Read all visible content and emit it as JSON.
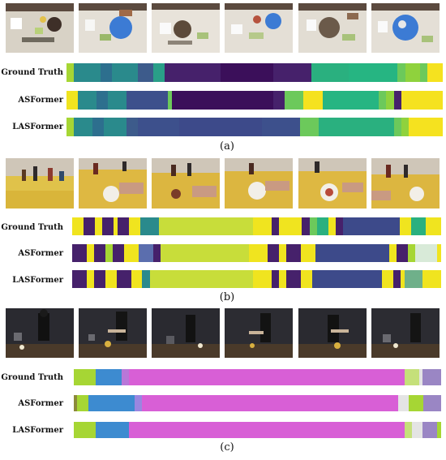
{
  "panels": [
    {
      "label": "(a)",
      "rows": [
        {
          "name": "Ground Truth",
          "segments": [
            {
              "w": 2,
              "c": "#a6d634"
            },
            {
              "w": 7,
              "c": "#2a8a8c"
            },
            {
              "w": 3,
              "c": "#2d6f8e"
            },
            {
              "w": 7,
              "c": "#2a8a8c"
            },
            {
              "w": 4,
              "c": "#3d5b8b"
            },
            {
              "w": 3,
              "c": "#2a9f88"
            },
            {
              "w": 15,
              "c": "#46216b"
            },
            {
              "w": 14,
              "c": "#3b0f5a"
            },
            {
              "w": 10,
              "c": "#46216b"
            },
            {
              "w": 10,
              "c": "#2ab07f"
            },
            {
              "w": 13,
              "c": "#26b582"
            },
            {
              "w": 2,
              "c": "#6cc95b"
            },
            {
              "w": 4,
              "c": "#8fd23d"
            },
            {
              "w": 2,
              "c": "#6cc95b"
            },
            {
              "w": 4,
              "c": "#f5e21f"
            }
          ]
        },
        {
          "name": "ASFormer",
          "segments": [
            {
              "w": 3,
              "c": "#f0e41f"
            },
            {
              "w": 5,
              "c": "#2a8a8c"
            },
            {
              "w": 3,
              "c": "#2d6f8e"
            },
            {
              "w": 5,
              "c": "#2a8a8c"
            },
            {
              "w": 11,
              "c": "#3d508c"
            },
            {
              "w": 1,
              "c": "#6cc95b"
            },
            {
              "w": 27,
              "c": "#3b0f5a"
            },
            {
              "w": 3,
              "c": "#46216b"
            },
            {
              "w": 5,
              "c": "#6cc95b"
            },
            {
              "w": 5,
              "c": "#f5e21f"
            },
            {
              "w": 15,
              "c": "#26b582"
            },
            {
              "w": 2,
              "c": "#6cc95b"
            },
            {
              "w": 2,
              "c": "#8fd23d"
            },
            {
              "w": 2,
              "c": "#46216b"
            },
            {
              "w": 11,
              "c": "#f5e21f"
            }
          ]
        },
        {
          "name": "LASFormer",
          "segments": [
            {
              "w": 2,
              "c": "#a6d634"
            },
            {
              "w": 5,
              "c": "#2a8a8c"
            },
            {
              "w": 3,
              "c": "#2d6f8e"
            },
            {
              "w": 6,
              "c": "#2a8a8c"
            },
            {
              "w": 3,
              "c": "#3d5b8b"
            },
            {
              "w": 11,
              "c": "#3d508c"
            },
            {
              "w": 22,
              "c": "#3d4a8a"
            },
            {
              "w": 10,
              "c": "#3d508c"
            },
            {
              "w": 5,
              "c": "#6cc95b"
            },
            {
              "w": 20,
              "c": "#2ab07f"
            },
            {
              "w": 2,
              "c": "#6cc95b"
            },
            {
              "w": 2,
              "c": "#8fd23d"
            },
            {
              "w": 9,
              "c": "#f5e21f"
            }
          ]
        }
      ]
    },
    {
      "label": "(b)",
      "rows": [
        {
          "name": "Ground Truth",
          "segments": [
            {
              "w": 3,
              "c": "#f0e41f"
            },
            {
              "w": 3,
              "c": "#46216b"
            },
            {
              "w": 2,
              "c": "#f0e41f"
            },
            {
              "w": 3,
              "c": "#46216b"
            },
            {
              "w": 1,
              "c": "#f0e41f"
            },
            {
              "w": 3,
              "c": "#46216b"
            },
            {
              "w": 3,
              "c": "#f0e41f"
            },
            {
              "w": 5,
              "c": "#2a8a8c"
            },
            {
              "w": 1,
              "c": "#c8dd3a"
            },
            {
              "w": 24,
              "c": "#c8dd3a"
            },
            {
              "w": 5,
              "c": "#f0e41f"
            },
            {
              "w": 2,
              "c": "#46216b"
            },
            {
              "w": 6,
              "c": "#f0e41f"
            },
            {
              "w": 2,
              "c": "#46216b"
            },
            {
              "w": 2,
              "c": "#6cc95b"
            },
            {
              "w": 3,
              "c": "#2ab07f"
            },
            {
              "w": 2,
              "c": "#f0e41f"
            },
            {
              "w": 2,
              "c": "#46216b"
            },
            {
              "w": 15,
              "c": "#3d4a8a"
            },
            {
              "w": 3,
              "c": "#f0e41f"
            },
            {
              "w": 4,
              "c": "#2ab07f"
            },
            {
              "w": 4,
              "c": "#f0e41f"
            }
          ]
        },
        {
          "name": "ASFormer",
          "segments": [
            {
              "w": 4,
              "c": "#46216b"
            },
            {
              "w": 2,
              "c": "#f0e41f"
            },
            {
              "w": 3,
              "c": "#46216b"
            },
            {
              "w": 2,
              "c": "#a6d634"
            },
            {
              "w": 3,
              "c": "#46216b"
            },
            {
              "w": 4,
              "c": "#f0e41f"
            },
            {
              "w": 4,
              "c": "#5b6eae"
            },
            {
              "w": 2,
              "c": "#46216b"
            },
            {
              "w": 24,
              "c": "#c8dd3a"
            },
            {
              "w": 5,
              "c": "#f0e41f"
            },
            {
              "w": 3,
              "c": "#46216b"
            },
            {
              "w": 2,
              "c": "#f0e41f"
            },
            {
              "w": 4,
              "c": "#46216b"
            },
            {
              "w": 4,
              "c": "#f0e41f"
            },
            {
              "w": 20,
              "c": "#3d4a8a"
            },
            {
              "w": 2,
              "c": "#f0e41f"
            },
            {
              "w": 3,
              "c": "#46216b"
            },
            {
              "w": 2,
              "c": "#a6d634"
            },
            {
              "w": 6,
              "c": "#d8ead8"
            },
            {
              "w": 1,
              "c": "#f0e41f"
            }
          ]
        },
        {
          "name": "LASFormer",
          "segments": [
            {
              "w": 4,
              "c": "#46216b"
            },
            {
              "w": 2,
              "c": "#f0e41f"
            },
            {
              "w": 3,
              "c": "#46216b"
            },
            {
              "w": 3,
              "c": "#f0e41f"
            },
            {
              "w": 4,
              "c": "#46216b"
            },
            {
              "w": 3,
              "c": "#f0e41f"
            },
            {
              "w": 2,
              "c": "#2a8a8c"
            },
            {
              "w": 2,
              "c": "#c8dd3a"
            },
            {
              "w": 26,
              "c": "#c8dd3a"
            },
            {
              "w": 5,
              "c": "#f0e41f"
            },
            {
              "w": 2,
              "c": "#46216b"
            },
            {
              "w": 2,
              "c": "#f0e41f"
            },
            {
              "w": 4,
              "c": "#46216b"
            },
            {
              "w": 3,
              "c": "#f0e41f"
            },
            {
              "w": 19,
              "c": "#3d4a8a"
            },
            {
              "w": 3,
              "c": "#f0e41f"
            },
            {
              "w": 2,
              "c": "#46216b"
            },
            {
              "w": 1,
              "c": "#f0e41f"
            },
            {
              "w": 5,
              "c": "#6fb08a"
            },
            {
              "w": 5,
              "c": "#f0e41f"
            }
          ]
        }
      ]
    },
    {
      "label": "(c)",
      "rows": [
        {
          "name": "Ground Truth",
          "segments": [
            {
              "w": 6,
              "c": "#a6d634"
            },
            {
              "w": 7,
              "c": "#3d8bd0"
            },
            {
              "w": 2,
              "c": "#b877d8"
            },
            {
              "w": 75,
              "c": "#d85fd6"
            },
            {
              "w": 4,
              "c": "#c5e07a"
            },
            {
              "w": 1,
              "c": "#e4e4e4"
            },
            {
              "w": 5,
              "c": "#9a86c4"
            }
          ]
        },
        {
          "name": "ASFormer",
          "segments": [
            {
              "w": 1,
              "c": "#8c8a3a"
            },
            {
              "w": 3,
              "c": "#a6d634"
            },
            {
              "w": 13,
              "c": "#3d8bd0"
            },
            {
              "w": 2,
              "c": "#9a86e0"
            },
            {
              "w": 71,
              "c": "#d85fd6"
            },
            {
              "w": 3,
              "c": "#e4e4e4"
            },
            {
              "w": 4,
              "c": "#a6d634"
            },
            {
              "w": 5,
              "c": "#9a86c4"
            }
          ]
        },
        {
          "name": "LASFormer",
          "segments": [
            {
              "w": 6,
              "c": "#a6d634"
            },
            {
              "w": 9,
              "c": "#3d8bd0"
            },
            {
              "w": 75,
              "c": "#d85fd6"
            },
            {
              "w": 2,
              "c": "#c5e07a"
            },
            {
              "w": 3,
              "c": "#e4e4e4"
            },
            {
              "w": 4,
              "c": "#9a86c4"
            },
            {
              "w": 1,
              "c": "#a6d634"
            }
          ]
        }
      ]
    }
  ]
}
